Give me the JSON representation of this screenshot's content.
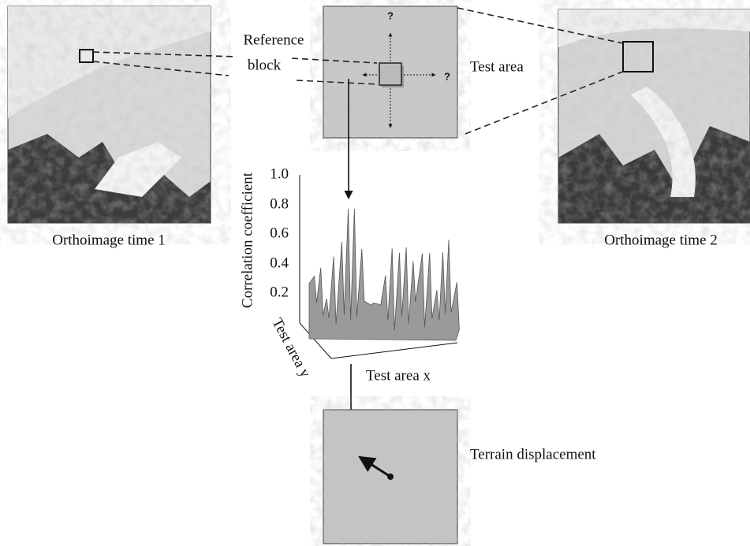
{
  "labels": {
    "reference_block": [
      "Reference",
      "block"
    ],
    "test_area": "Test area",
    "orthoimage_1": "Orthoimage time 1",
    "orthoimage_2": "Orthoimage time 2",
    "terrain_displacement": "Terrain displacement",
    "unknown_marks": [
      "?",
      "?"
    ]
  },
  "surface_plot": {
    "z_label": "Correlation coefficient",
    "z_ticks": [
      "1.0",
      "0.8",
      "0.6",
      "0.4",
      "0.2"
    ],
    "x_label": "Test area x",
    "y_label": "Test area y"
  }
}
